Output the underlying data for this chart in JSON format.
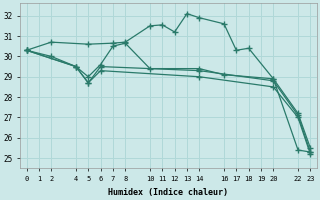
{
  "xlabel": "Humidex (Indice chaleur)",
  "bg_color": "#cce8e8",
  "grid_color": "#b0d8d8",
  "line_color": "#2a7a6a",
  "xticks": [
    0,
    1,
    2,
    4,
    5,
    6,
    7,
    8,
    10,
    11,
    12,
    13,
    14,
    16,
    17,
    18,
    19,
    20,
    22,
    23
  ],
  "yticks": [
    25,
    26,
    27,
    28,
    29,
    30,
    31,
    32
  ],
  "ylim": [
    24.5,
    32.6
  ],
  "xlim": [
    -0.5,
    23.5
  ],
  "line1_x": [
    0,
    2,
    5,
    7,
    8,
    10,
    11,
    12,
    13,
    14,
    16,
    17,
    18,
    20,
    22,
    23
  ],
  "line1_y": [
    30.3,
    30.7,
    30.6,
    30.65,
    30.7,
    31.5,
    31.55,
    31.2,
    32.1,
    31.9,
    31.6,
    30.3,
    30.4,
    28.9,
    25.4,
    25.3
  ],
  "line2_x": [
    0,
    2,
    4,
    5,
    6,
    7,
    8,
    10,
    14,
    16,
    20,
    22,
    23
  ],
  "line2_y": [
    30.3,
    30.0,
    29.5,
    29.0,
    29.6,
    30.5,
    30.65,
    29.4,
    29.4,
    29.1,
    28.9,
    27.2,
    25.5
  ],
  "line3_x": [
    0,
    4,
    5,
    6,
    14,
    20,
    22,
    23
  ],
  "line3_y": [
    30.3,
    29.5,
    28.7,
    29.5,
    29.3,
    28.8,
    27.1,
    25.3
  ],
  "line4_x": [
    0,
    4,
    5,
    6,
    14,
    20,
    22,
    23
  ],
  "line4_y": [
    30.3,
    29.5,
    28.7,
    29.3,
    29.0,
    28.5,
    27.0,
    25.2
  ]
}
